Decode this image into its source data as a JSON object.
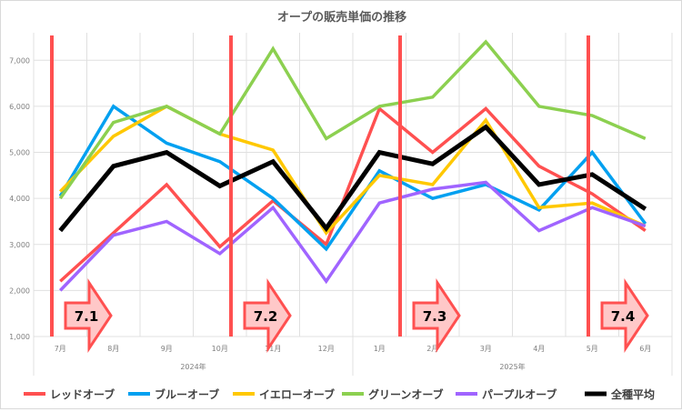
{
  "chart_data": {
    "type": "line",
    "title": "オープの販売単価の推移",
    "categories": [
      "7月",
      "8月",
      "9月",
      "10月",
      "11月",
      "12月",
      "1月",
      "2月",
      "3月",
      "4月",
      "5月",
      "6月"
    ],
    "year_groups": [
      {
        "label": "2024年",
        "span": 6
      },
      {
        "label": "2025年",
        "span": 6
      }
    ],
    "ylim": [
      1000,
      7500
    ],
    "yticks": [
      1000,
      2000,
      3000,
      4000,
      5000,
      6000,
      7000
    ],
    "ytick_labels": [
      "1,000",
      "2,000",
      "3,000",
      "4,000",
      "5,000",
      "6,000",
      "7,000"
    ],
    "grid": true,
    "legend_position": "bottom",
    "series": [
      {
        "name": "レッドオーブ",
        "color": "#ff5050",
        "values": [
          2200,
          3250,
          4300,
          2950,
          3950,
          3000,
          5950,
          5000,
          5950,
          4700,
          4100,
          3300
        ]
      },
      {
        "name": "ブルーオーブ",
        "color": "#00a0f0",
        "values": [
          4050,
          6000,
          5200,
          4800,
          4000,
          2900,
          4600,
          4000,
          4300,
          3750,
          5000,
          3450
        ]
      },
      {
        "name": "イエローオーブ",
        "color": "#ffc800",
        "values": [
          4150,
          5350,
          6000,
          5400,
          5050,
          3250,
          4500,
          4300,
          5700,
          3800,
          3900,
          3400
        ]
      },
      {
        "name": "グリーンオーブ",
        "color": "#8cd050",
        "values": [
          4000,
          5650,
          6000,
          5400,
          7250,
          5300,
          6000,
          6200,
          7400,
          6000,
          5800,
          5300
        ]
      },
      {
        "name": "パープルオーブ",
        "color": "#a064ff",
        "values": [
          2000,
          3200,
          3500,
          2800,
          3800,
          2200,
          3900,
          4200,
          4350,
          3300,
          3800,
          3400
        ]
      },
      {
        "name": "全種平均",
        "color": "#000000",
        "values": [
          3300,
          4700,
          5000,
          4270,
          4800,
          3350,
          5000,
          4750,
          5550,
          4300,
          4520,
          3770
        ]
      }
    ],
    "annotations": [
      {
        "label": "7.1",
        "position_category": "7月"
      },
      {
        "label": "7.2",
        "position_category": "11月"
      },
      {
        "label": "7.3",
        "position_category": "2月"
      },
      {
        "label": "7.4",
        "position_category": "6月"
      }
    ],
    "marker_color": "#ff5050"
  }
}
